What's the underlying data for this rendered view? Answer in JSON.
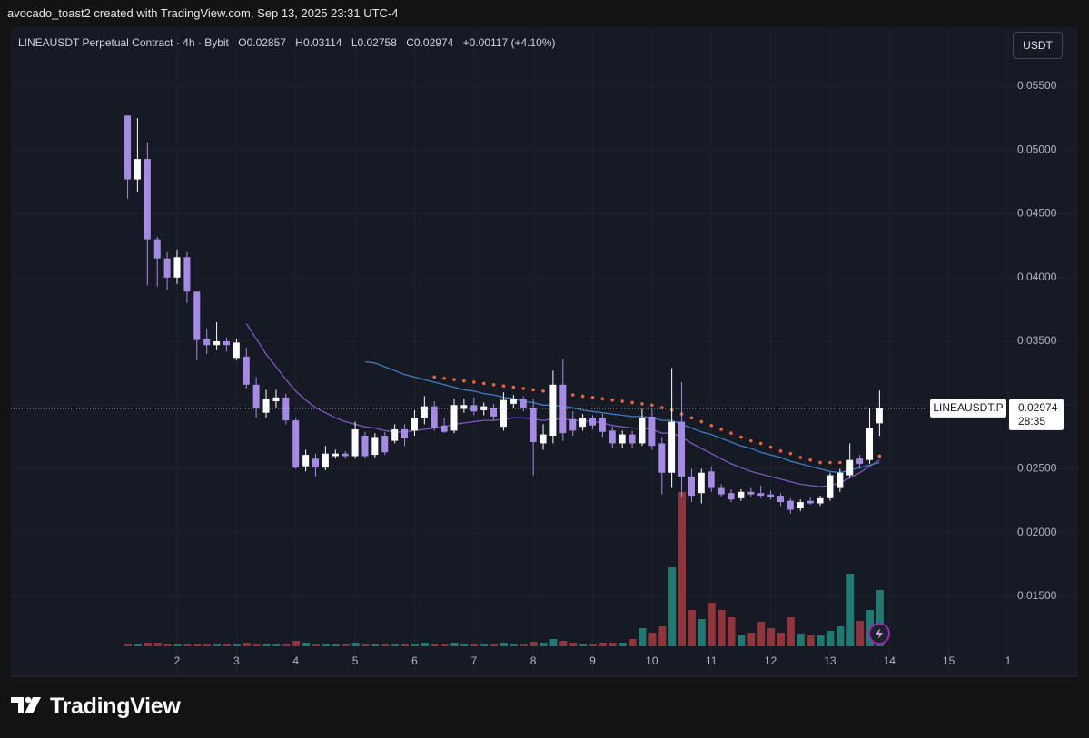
{
  "header": {
    "attribution": "avocado_toast2 created with TradingView.com, Sep 13, 2025 23:31 UTC-4",
    "symbol": "LINEAUSDT Perpetual Contract · 4h · Bybit",
    "ohlc": [
      {
        "label": "O",
        "value": 0.02857
      },
      {
        "label": "H",
        "value": 0.03114
      },
      {
        "label": "L",
        "value": 0.02758
      },
      {
        "label": "C",
        "value": 0.02974
      }
    ],
    "change": "+0.00117 (+4.10%)"
  },
  "currency_button": "USDT",
  "price_tag": {
    "symbol": "LINEAUSDT.P",
    "price": 0.02974,
    "countdown": "28:35"
  },
  "brand": "TradingView",
  "chart_data": {
    "type": "candlestick",
    "x": [
      1.167,
      1.333,
      1.5,
      1.667,
      1.833,
      2,
      2.167,
      2.333,
      2.5,
      2.667,
      2.833,
      3,
      3.167,
      3.333,
      3.5,
      3.667,
      3.833,
      4,
      4.167,
      4.333,
      4.5,
      4.667,
      4.833,
      5,
      5.167,
      5.333,
      5.5,
      5.667,
      5.833,
      6,
      6.167,
      6.333,
      6.5,
      6.667,
      6.833,
      7,
      7.167,
      7.333,
      7.5,
      7.667,
      7.833,
      8,
      8.167,
      8.333,
      8.5,
      8.667,
      8.833,
      9,
      9.167,
      9.333,
      9.5,
      9.667,
      9.833,
      10,
      10.167,
      10.333,
      10.5,
      10.667,
      10.833,
      11,
      11.167,
      11.333,
      11.5,
      11.667,
      11.833,
      12,
      12.167,
      12.333,
      12.5,
      12.667,
      12.833,
      13,
      13.167,
      13.333,
      13.5,
      13.667,
      13.833
    ],
    "open": [
      0.0527,
      0.0477,
      0.0493,
      0.043,
      0.0415,
      0.04,
      0.0416,
      0.0389,
      0.0352,
      0.0347,
      0.035,
      0.0337,
      0.0338,
      0.0316,
      0.0294,
      0.0303,
      0.0306,
      0.0288,
      0.0252,
      0.0258,
      0.0251,
      0.026,
      0.0262,
      0.026,
      0.0276,
      0.0261,
      0.0276,
      0.0272,
      0.0281,
      0.028,
      0.029,
      0.0299,
      0.0284,
      0.028,
      0.0297,
      0.03,
      0.0296,
      0.0298,
      0.0283,
      0.0301,
      0.0305,
      0.0298,
      0.027,
      0.0276,
      0.0316,
      0.0289,
      0.0283,
      0.029,
      0.029,
      0.028,
      0.027,
      0.0277,
      0.027,
      0.0291,
      0.027,
      0.0247,
      0.0287,
      0.0244,
      0.0231,
      0.0248,
      0.0235,
      0.0231,
      0.0227,
      0.0232,
      0.0231,
      0.023,
      0.0229,
      0.0225,
      0.0219,
      0.0225,
      0.0223,
      0.0227,
      0.0235,
      0.0245,
      0.0258,
      0.0257,
      0.02857
    ],
    "high": [
      0.0527,
      0.0525,
      0.0506,
      0.0432,
      0.042,
      0.0422,
      0.042,
      0.0389,
      0.036,
      0.0365,
      0.0353,
      0.0352,
      0.0345,
      0.0322,
      0.0312,
      0.0312,
      0.0309,
      0.029,
      0.0265,
      0.0262,
      0.0268,
      0.0265,
      0.0264,
      0.0287,
      0.0279,
      0.0278,
      0.0279,
      0.0285,
      0.0285,
      0.0296,
      0.0307,
      0.0303,
      0.029,
      0.0305,
      0.0305,
      0.0306,
      0.0302,
      0.0301,
      0.031,
      0.0308,
      0.0307,
      0.0305,
      0.0285,
      0.0327,
      0.0336,
      0.0295,
      0.0293,
      0.0292,
      0.0293,
      0.0283,
      0.028,
      0.028,
      0.0297,
      0.0297,
      0.0275,
      0.0329,
      0.0318,
      0.025,
      0.025,
      0.0252,
      0.0238,
      0.0234,
      0.0234,
      0.0235,
      0.0237,
      0.0233,
      0.0231,
      0.0227,
      0.0226,
      0.0228,
      0.0229,
      0.0247,
      0.025,
      0.027,
      0.0261,
      0.0298,
      0.03114
    ],
    "low": [
      0.0462,
      0.0467,
      0.0394,
      0.0393,
      0.039,
      0.0395,
      0.038,
      0.0335,
      0.034,
      0.0343,
      0.0342,
      0.0335,
      0.0313,
      0.029,
      0.029,
      0.0298,
      0.0285,
      0.025,
      0.0248,
      0.0244,
      0.0249,
      0.0258,
      0.0258,
      0.0258,
      0.0258,
      0.0259,
      0.0261,
      0.027,
      0.0268,
      0.0276,
      0.0285,
      0.028,
      0.0278,
      0.0278,
      0.0294,
      0.0292,
      0.0292,
      0.0288,
      0.028,
      0.0298,
      0.0295,
      0.0245,
      0.0265,
      0.027,
      0.0272,
      0.0276,
      0.028,
      0.0281,
      0.0275,
      0.0266,
      0.0266,
      0.0266,
      0.0268,
      0.0265,
      0.023,
      0.0235,
      0.0228,
      0.0224,
      0.0223,
      0.0232,
      0.0228,
      0.0224,
      0.0225,
      0.0228,
      0.0227,
      0.0226,
      0.0221,
      0.0215,
      0.0217,
      0.0222,
      0.0221,
      0.0225,
      0.0232,
      0.0243,
      0.025,
      0.0254,
      0.02758
    ],
    "close": [
      0.0477,
      0.0493,
      0.043,
      0.0415,
      0.04,
      0.0416,
      0.0389,
      0.0351,
      0.0347,
      0.035,
      0.0347,
      0.0349,
      0.0316,
      0.0298,
      0.0305,
      0.0306,
      0.0288,
      0.0251,
      0.0261,
      0.0251,
      0.0262,
      0.0262,
      0.026,
      0.0281,
      0.026,
      0.0275,
      0.0263,
      0.0281,
      0.0274,
      0.029,
      0.0299,
      0.0282,
      0.0279,
      0.03,
      0.03,
      0.0295,
      0.0299,
      0.0291,
      0.0304,
      0.0305,
      0.0298,
      0.0271,
      0.0277,
      0.0316,
      0.0278,
      0.028,
      0.029,
      0.0284,
      0.0279,
      0.027,
      0.0277,
      0.027,
      0.029,
      0.0268,
      0.0247,
      0.0287,
      0.0244,
      0.0229,
      0.0247,
      0.0235,
      0.023,
      0.0226,
      0.0232,
      0.023,
      0.0229,
      0.0228,
      0.0224,
      0.0218,
      0.0224,
      0.0223,
      0.0227,
      0.0245,
      0.0247,
      0.0257,
      0.0254,
      0.0282,
      0.02974
    ],
    "volume": [
      3,
      3,
      4,
      4,
      3,
      3,
      3,
      3,
      3,
      3,
      3,
      3,
      4,
      3,
      3,
      3,
      3,
      6,
      4,
      3,
      3,
      3,
      3,
      4,
      3,
      3,
      3,
      3,
      3,
      3,
      4,
      3,
      3,
      4,
      3,
      3,
      3,
      3,
      4,
      3,
      3,
      5,
      4,
      8,
      6,
      4,
      3,
      3,
      4,
      4,
      4,
      8,
      20,
      15,
      22,
      87,
      170,
      40,
      30,
      48,
      40,
      32,
      12,
      15,
      27,
      20,
      15,
      32,
      14,
      12,
      12,
      17,
      22,
      80,
      28,
      40,
      62
    ],
    "up_color": "#ffffff",
    "down_color": "#a68ae6",
    "volume_up_color": "#1f7a72",
    "volume_down_color": "#93343b",
    "lines": [
      {
        "color": "#7e57c2",
        "values": [
          null,
          null,
          null,
          null,
          null,
          null,
          null,
          null,
          null,
          null,
          null,
          null,
          0.0364,
          0.0352,
          0.034,
          0.033,
          0.032,
          0.0311,
          0.0304,
          0.0298,
          0.0294,
          0.029,
          0.0287,
          0.0285,
          0.0283,
          0.0282,
          0.028,
          0.0279,
          0.0279,
          0.028,
          0.0281,
          0.0282,
          0.0283,
          0.0285,
          0.0286,
          0.0287,
          0.0288,
          0.0288,
          0.0289,
          0.029,
          0.029,
          0.0289,
          0.0288,
          0.0289,
          0.0289,
          0.0288,
          0.0288,
          0.0287,
          0.0286,
          0.0284,
          0.0283,
          0.0282,
          0.0282,
          0.0281,
          0.0278,
          0.0278,
          0.0275,
          0.027,
          0.0266,
          0.0262,
          0.0258,
          0.0254,
          0.0251,
          0.0248,
          0.0246,
          0.0244,
          0.0242,
          0.024,
          0.0238,
          0.0237,
          0.0236,
          0.0237,
          0.0239,
          0.0243,
          0.0247,
          0.0252,
          0.0257
        ]
      },
      {
        "color": "#3d7fc4",
        "values": [
          null,
          null,
          null,
          null,
          null,
          null,
          null,
          null,
          null,
          null,
          null,
          null,
          null,
          null,
          null,
          null,
          null,
          null,
          null,
          null,
          null,
          null,
          null,
          null,
          0.0334,
          0.0333,
          0.033,
          0.0327,
          0.0324,
          0.0322,
          0.032,
          0.0318,
          0.0316,
          0.0314,
          0.0312,
          0.0311,
          0.0309,
          0.0308,
          0.0306,
          0.0305,
          0.0303,
          0.0302,
          0.03,
          0.03,
          0.0299,
          0.0298,
          0.0296,
          0.0295,
          0.0294,
          0.0293,
          0.0292,
          0.0291,
          0.0291,
          0.029,
          0.0288,
          0.0288,
          0.0285,
          0.0282,
          0.0279,
          0.0277,
          0.0274,
          0.0271,
          0.0268,
          0.0266,
          0.0263,
          0.0261,
          0.0259,
          0.0256,
          0.0254,
          0.0252,
          0.025,
          0.0248,
          0.0247,
          0.0249,
          0.0251,
          0.0253,
          0.0255
        ]
      }
    ],
    "dots": {
      "color": "#f0623a",
      "values": [
        null,
        null,
        null,
        null,
        null,
        null,
        null,
        null,
        null,
        null,
        null,
        null,
        null,
        null,
        null,
        null,
        null,
        null,
        null,
        null,
        null,
        null,
        null,
        null,
        null,
        null,
        null,
        null,
        null,
        null,
        null,
        0.0322,
        0.0321,
        0.032,
        0.0319,
        0.0318,
        0.0317,
        0.0316,
        0.0315,
        0.0314,
        0.0313,
        0.0312,
        0.0311,
        0.031,
        0.0309,
        0.0308,
        0.0307,
        0.0306,
        0.0305,
        0.0304,
        0.0303,
        0.0302,
        0.0301,
        0.03,
        0.0298,
        0.0296,
        0.0293,
        0.029,
        0.0287,
        0.0284,
        0.0281,
        0.0278,
        0.0275,
        0.0272,
        0.027,
        0.0267,
        0.0264,
        0.0262,
        0.0259,
        0.0257,
        0.0255,
        0.0255,
        0.0255,
        0.0256,
        0.0257,
        0.0258,
        0.026
      ]
    },
    "ylim": [
      0.00874,
      0.05927
    ],
    "yticks": [
      {
        "value": 0.015,
        "label": "0.01500"
      },
      {
        "value": 0.02,
        "label": "0.02000"
      },
      {
        "value": 0.025,
        "label": "0.02500"
      },
      {
        "value": 0.03,
        "label": "0.03000"
      },
      {
        "value": 0.035,
        "label": "0.03500"
      },
      {
        "value": 0.04,
        "label": "0.04000"
      },
      {
        "value": 0.045,
        "label": "0.04500"
      },
      {
        "value": 0.05,
        "label": "0.05000"
      },
      {
        "value": 0.055,
        "label": "0.05500"
      }
    ],
    "xlim": [
      -0.8,
      16
    ],
    "xticks": [
      2,
      3,
      4,
      5,
      6,
      7,
      8,
      9,
      10,
      11,
      12,
      13,
      14,
      15,
      {
        "value": 16,
        "label": "1"
      }
    ],
    "grid": true
  }
}
